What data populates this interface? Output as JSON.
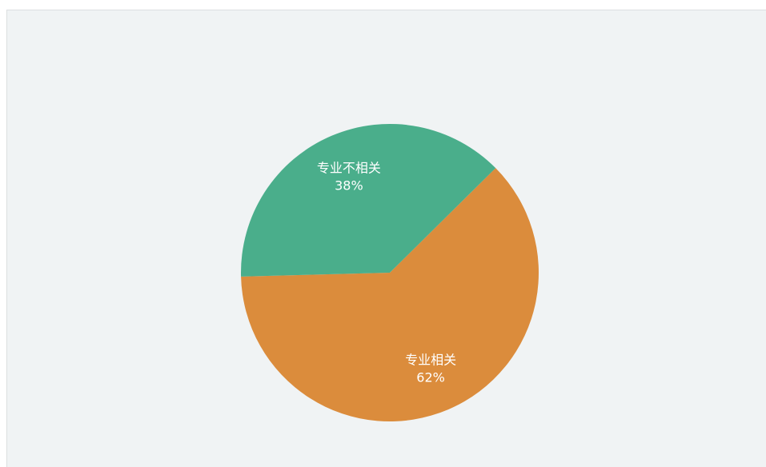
{
  "chart_data": {
    "type": "pie",
    "categories": [
      "专业相关",
      "专业不相关"
    ],
    "values": [
      62,
      38
    ],
    "value_labels": [
      "62%",
      "38%"
    ],
    "colors": [
      "#db8c3c",
      "#4aae8b"
    ]
  }
}
